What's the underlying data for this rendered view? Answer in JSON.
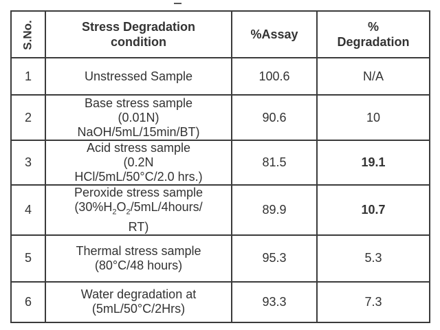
{
  "headers": {
    "sno": "S.No.",
    "condition_line1": "Stress Degradation",
    "condition_line2": "condition",
    "assay": "%Assay",
    "degradation_line1": "%",
    "degradation_line2": "Degradation"
  },
  "rows": [
    {
      "sno": "1",
      "condition": [
        "Unstressed Sample"
      ],
      "assay": "100.6",
      "degradation": "N/A"
    },
    {
      "sno": "2",
      "condition": [
        "Base stress sample",
        "(0.01N)",
        "NaOH/5mL/15min/BT)"
      ],
      "assay": "90.6",
      "degradation": "10"
    },
    {
      "sno": "3",
      "condition": [
        "Acid stress sample",
        "(0.2N",
        "HCl/5mL/50°C/2.0 hrs.)"
      ],
      "assay": "81.5",
      "degradation": "19.1"
    },
    {
      "sno": "4",
      "condition_parts": {
        "line1": "Peroxide stress sample",
        "line2_pre": "(30%H",
        "sub1": "2",
        "mid": "O",
        "sub2": "2",
        "line2_post": "/5mL/4hours/",
        "line3": "RT)"
      },
      "assay": "89.9",
      "degradation": "10.7"
    },
    {
      "sno": "5",
      "condition": [
        "Thermal stress sample",
        "(80°C/48 hours)"
      ],
      "assay": "95.3",
      "degradation": "5.3"
    },
    {
      "sno": "6",
      "condition": [
        "Water degradation at",
        "(5mL/50°C/2Hrs)"
      ],
      "assay": "93.3",
      "degradation": "7.3"
    }
  ]
}
